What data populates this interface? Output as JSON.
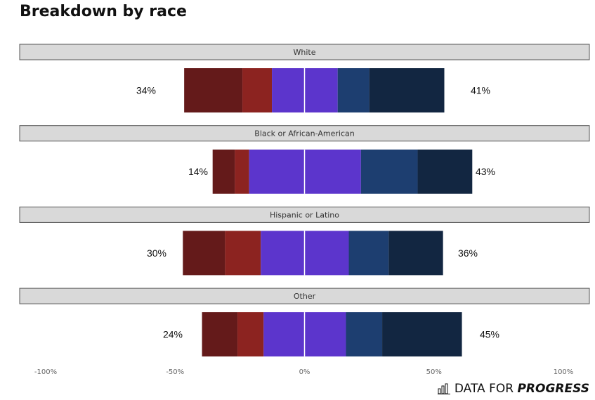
{
  "title": "Breakdown by race",
  "logo": {
    "text_regular": "DATA FOR ",
    "text_strong": "PROGRESS",
    "icon": "bar-chart-icon"
  },
  "colors": {
    "segments": [
      "#641a1a",
      "#8c2320",
      "#5c35cc",
      "#5c35cc",
      "#1d3e70",
      "#122641"
    ],
    "strip_fill": "#d9d9d9",
    "strip_stroke": "#555555",
    "center_line": "#ffffff"
  },
  "chart_data": {
    "type": "bar",
    "orientation": "horizontal-diverging-stacked",
    "xlim": [
      -100,
      100
    ],
    "xticks": [
      -100,
      -50,
      0,
      50,
      100
    ],
    "xtick_labels": [
      "-100%",
      "-50%",
      "0%",
      "50%",
      "100%"
    ],
    "panels": [
      {
        "label": "White",
        "segments": [
          {
            "start": -46.5,
            "end": -24.0
          },
          {
            "start": -24.0,
            "end": -12.6
          },
          {
            "start": -12.6,
            "end": 0
          },
          {
            "start": 0,
            "end": 12.8
          },
          {
            "start": 12.8,
            "end": 25.0
          },
          {
            "start": 25.0,
            "end": 54.0
          }
        ],
        "left_label": "34%",
        "right_label": "41%"
      },
      {
        "label": "Black or African-American",
        "segments": [
          {
            "start": -35.5,
            "end": -26.9
          },
          {
            "start": -26.9,
            "end": -21.4
          },
          {
            "start": -21.4,
            "end": 0
          },
          {
            "start": 0,
            "end": 21.8
          },
          {
            "start": 21.8,
            "end": 43.7
          },
          {
            "start": 43.7,
            "end": 64.8
          }
        ],
        "left_label": "14%",
        "right_label": "43%"
      },
      {
        "label": "Hispanic or Latino",
        "segments": [
          {
            "start": -47.0,
            "end": -30.7
          },
          {
            "start": -30.7,
            "end": -16.9
          },
          {
            "start": -16.9,
            "end": 0
          },
          {
            "start": 0,
            "end": 17.1
          },
          {
            "start": 17.1,
            "end": 32.5
          },
          {
            "start": 32.5,
            "end": 53.5
          }
        ],
        "left_label": "30%",
        "right_label": "36%"
      },
      {
        "label": "Other",
        "segments": [
          {
            "start": -39.6,
            "end": -25.9
          },
          {
            "start": -25.9,
            "end": -15.8
          },
          {
            "start": -15.8,
            "end": 0
          },
          {
            "start": 0,
            "end": 16.0
          },
          {
            "start": 16.0,
            "end": 30.0
          },
          {
            "start": 30.0,
            "end": 60.8
          }
        ],
        "left_label": "24%",
        "right_label": "45%"
      }
    ],
    "legend": "none",
    "grid": false
  }
}
